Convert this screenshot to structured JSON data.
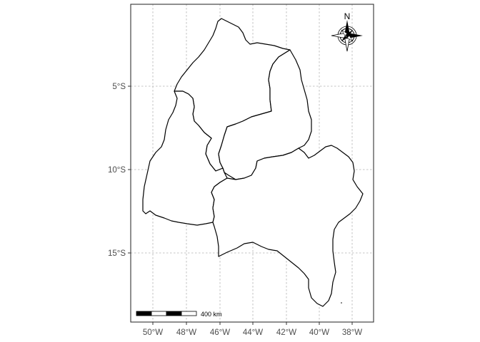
{
  "map": {
    "x_axis_labels": [
      "50°W",
      "48°W",
      "46°W",
      "44°W",
      "42°W",
      "40°W",
      "38°W"
    ],
    "y_axis_labels": [
      "5°S",
      "10°S",
      "15°S"
    ],
    "grid": true,
    "scale_bar": {
      "label": "400 km",
      "segments": 4
    },
    "north_arrow": {
      "label": "N",
      "placement": "top-right"
    },
    "regions": [
      "state-northwest",
      "state-north",
      "state-west",
      "state-east"
    ],
    "colors": {
      "fill": "#ffffff",
      "outline": "#000000",
      "grid": "#b3b3b3",
      "axis_text": "#4d4d4d"
    }
  }
}
